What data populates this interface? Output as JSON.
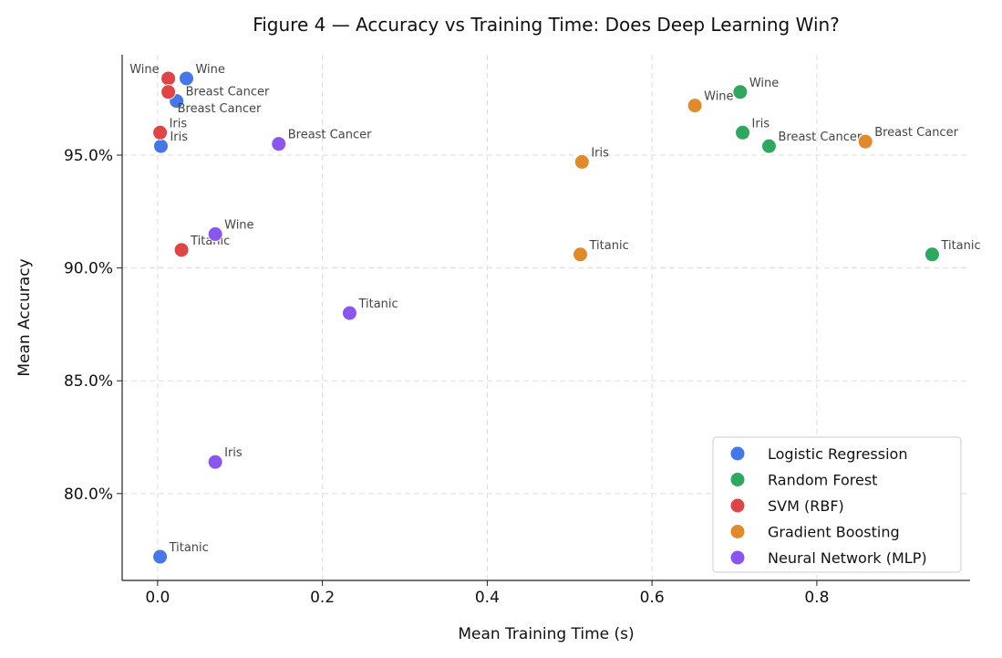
{
  "chart_data": {
    "type": "scatter",
    "title": "Figure 4 — Accuracy vs Training Time: Does Deep Learning Win?",
    "xlabel": "Mean Training Time (s)",
    "ylabel": "Mean Accuracy",
    "xlim": [
      -0.043,
      0.986
    ],
    "ylim": [
      76.15,
      99.45
    ],
    "x_ticks": [
      0.0,
      0.2,
      0.4,
      0.6,
      0.8
    ],
    "x_tick_labels": [
      "0.0",
      "0.2",
      "0.4",
      "0.6",
      "0.8"
    ],
    "y_ticks": [
      80,
      85,
      90,
      95
    ],
    "y_tick_labels": [
      "80.0%",
      "85.0%",
      "90.0%",
      "95.0%"
    ],
    "grid": true,
    "legend_position": "bottom-right",
    "series": [
      {
        "name": "Logistic Regression",
        "color": "#4477e8",
        "points": [
          {
            "label": "Wine",
            "x": 0.035,
            "y": 98.4
          },
          {
            "label": "Breast Cancer",
            "x": 0.023,
            "y": 97.4
          },
          {
            "label": "Iris",
            "x": 0.004,
            "y": 95.4
          },
          {
            "label": "Titanic",
            "x": 0.003,
            "y": 77.2
          }
        ]
      },
      {
        "name": "Random Forest",
        "color": "#2ea85e",
        "points": [
          {
            "label": "Wine",
            "x": 0.707,
            "y": 97.8
          },
          {
            "label": "Iris",
            "x": 0.71,
            "y": 96.0
          },
          {
            "label": "Breast Cancer",
            "x": 0.742,
            "y": 95.4
          },
          {
            "label": "Titanic",
            "x": 0.94,
            "y": 90.6
          }
        ]
      },
      {
        "name": "SVM (RBF)",
        "color": "#e04545",
        "points": [
          {
            "label": "Wine",
            "x": 0.013,
            "y": 98.4
          },
          {
            "label": "Breast Cancer",
            "x": 0.013,
            "y": 97.8
          },
          {
            "label": "Iris",
            "x": 0.003,
            "y": 96.0
          },
          {
            "label": "Titanic",
            "x": 0.029,
            "y": 90.8
          }
        ]
      },
      {
        "name": "Gradient Boosting",
        "color": "#e08a2c",
        "points": [
          {
            "label": "Wine",
            "x": 0.652,
            "y": 97.2
          },
          {
            "label": "Iris",
            "x": 0.515,
            "y": 94.7
          },
          {
            "label": "Titanic",
            "x": 0.513,
            "y": 90.6
          },
          {
            "label": "Breast Cancer",
            "x": 0.859,
            "y": 95.6
          }
        ]
      },
      {
        "name": "Neural Network (MLP)",
        "color": "#8b55f0",
        "points": [
          {
            "label": "Breast Cancer",
            "x": 0.147,
            "y": 95.5
          },
          {
            "label": "Wine",
            "x": 0.07,
            "y": 91.5
          },
          {
            "label": "Titanic",
            "x": 0.233,
            "y": 88.0
          },
          {
            "label": "Iris",
            "x": 0.07,
            "y": 81.4
          }
        ]
      }
    ]
  }
}
